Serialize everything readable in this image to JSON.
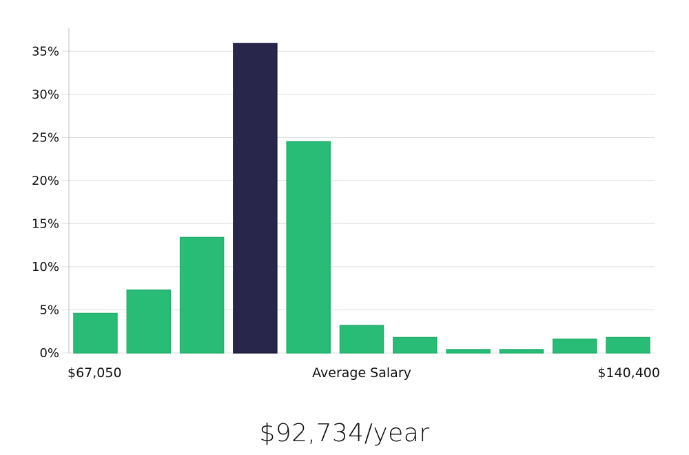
{
  "chart_data": {
    "type": "bar",
    "values": [
      4.6,
      7.3,
      13.4,
      35.9,
      24.5,
      3.2,
      1.8,
      0.4,
      0.4,
      1.6,
      1.8
    ],
    "highlight_index": 3,
    "x_min_label": "$67,050",
    "x_center_label": "Average Salary",
    "x_max_label": "$140,400",
    "ylim": [
      0,
      37.5
    ],
    "yticks": [
      0,
      5,
      10,
      15,
      20,
      25,
      30,
      35
    ],
    "ytick_labels": [
      "0%",
      "5%",
      "10%",
      "15%",
      "20%",
      "25%",
      "30%",
      "35%"
    ],
    "grid": true,
    "colors": {
      "bar": "#28bc76",
      "highlight": "#28264a",
      "grid": "#dddddd",
      "axis": "#bbbbbb"
    }
  },
  "headline": "$92,734/year"
}
